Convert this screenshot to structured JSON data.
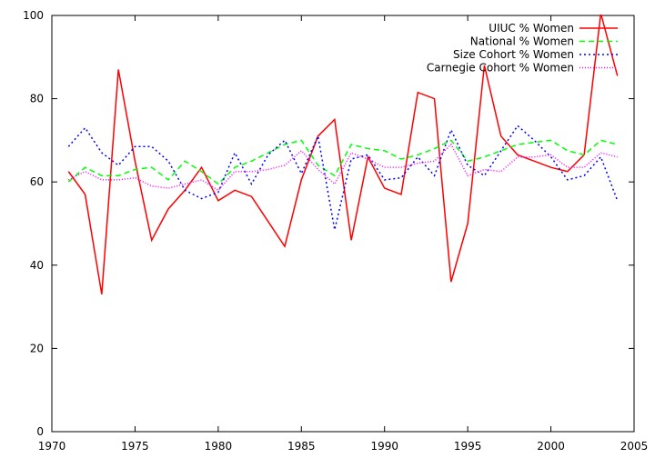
{
  "chart_data": {
    "type": "line",
    "title": "",
    "xlabel": "",
    "ylabel": "",
    "xlim": [
      1970,
      2005
    ],
    "ylim": [
      0,
      100
    ],
    "x_ticks": [
      "1970",
      "1975",
      "1980",
      "1985",
      "1990",
      "1995",
      "2000",
      "2005"
    ],
    "y_ticks": [
      "0",
      "20",
      "40",
      "60",
      "80",
      "100"
    ],
    "x_tick_values": [
      1970,
      1975,
      1980,
      1985,
      1990,
      1995,
      2000,
      2005
    ],
    "y_tick_values": [
      0,
      20,
      40,
      60,
      80,
      100
    ],
    "grid": false,
    "legend_position": "top-right",
    "x": [
      1971,
      1972,
      1973,
      1974,
      1975,
      1976,
      1977,
      1978,
      1979,
      1980,
      1981,
      1982,
      1983,
      1984,
      1985,
      1986,
      1987,
      1988,
      1989,
      1990,
      1991,
      1992,
      1993,
      1994,
      1995,
      1996,
      1997,
      1998,
      1999,
      2000,
      2001,
      2002,
      2003,
      2004
    ],
    "series": [
      {
        "name": "UIUC % Women",
        "color": "#ff0000",
        "dash": "solid",
        "values": [
          62.5,
          57,
          33,
          87,
          65,
          46,
          53.5,
          58,
          63.5,
          55.5,
          58,
          56.5,
          50.5,
          44.5,
          60.5,
          71,
          75,
          46,
          66,
          58.5,
          57,
          81.5,
          80,
          36,
          50,
          88,
          71,
          66.5,
          65,
          63.5,
          62.5,
          66.5,
          100.5,
          85.5
        ]
      },
      {
        "name": "National % Women",
        "color": "#00ff00",
        "dash": "6,4",
        "values": [
          60,
          63.5,
          61.5,
          61.5,
          63,
          63.5,
          60.5,
          65,
          62.5,
          59.5,
          63.5,
          65,
          67,
          69,
          70,
          64,
          61.5,
          69,
          68,
          67.5,
          65.5,
          66.5,
          68,
          70,
          65,
          66,
          67.5,
          69,
          69.5,
          70,
          67.5,
          66.5,
          70,
          69
        ]
      },
      {
        "name": "Size Cohort % Women",
        "color": "#0000ff",
        "dash": "2,3",
        "values": [
          68.5,
          73,
          67,
          64,
          68.5,
          68.5,
          65,
          58,
          56,
          57.5,
          67,
          59.5,
          66.5,
          70,
          62,
          71,
          48.5,
          65.5,
          66.5,
          60.5,
          61,
          66,
          61.5,
          72.5,
          64,
          61.5,
          67.5,
          73.5,
          70,
          66,
          60.5,
          61.5,
          66,
          55.5
        ]
      },
      {
        "name": "Carnegie Cohort % Women",
        "color": "#ff00ff",
        "dash": "1,2",
        "values": [
          60.5,
          62.5,
          60.5,
          60.5,
          61,
          59,
          58.5,
          59.5,
          60.5,
          58,
          62.5,
          62.5,
          63,
          64,
          67.5,
          63,
          59.5,
          67,
          65.5,
          63.5,
          63.5,
          64.5,
          65,
          69,
          61.5,
          63,
          62.5,
          66,
          66,
          66.5,
          63.5,
          63.5,
          67,
          66
        ]
      }
    ]
  }
}
